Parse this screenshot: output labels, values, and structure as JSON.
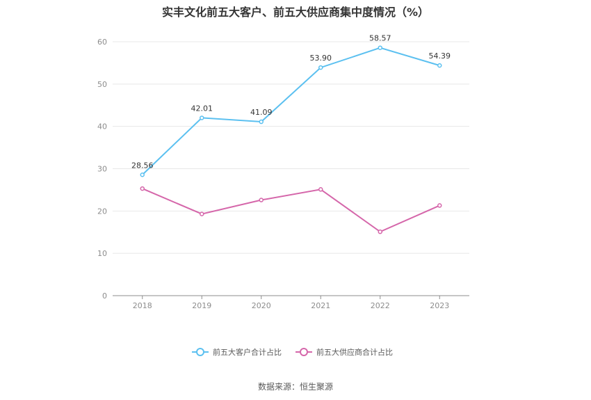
{
  "chart_data": {
    "type": "line",
    "title": "实丰文化前五大客户、前五大供应商集中度情况（%）",
    "categories": [
      "2018",
      "2019",
      "2020",
      "2021",
      "2022",
      "2023"
    ],
    "ylim": [
      0,
      60
    ],
    "yticks": [
      0,
      10,
      20,
      30,
      40,
      50,
      60
    ],
    "grid": true,
    "legend_position": "bottom-center",
    "series": [
      {
        "name": "前五大客户合计占比",
        "color": "#5bc0f0",
        "values": [
          28.56,
          42.01,
          41.09,
          53.9,
          58.57,
          54.39
        ],
        "labels": [
          "28.56",
          "42.01",
          "41.09",
          "53.90",
          "58.57",
          "54.39"
        ]
      },
      {
        "name": "前五大供应商合计占比",
        "color": "#d566aa",
        "values": [
          25.3,
          19.3,
          22.6,
          25.1,
          15.1,
          21.3
        ],
        "labels": []
      }
    ],
    "source": "数据来源：恒生聚源"
  }
}
